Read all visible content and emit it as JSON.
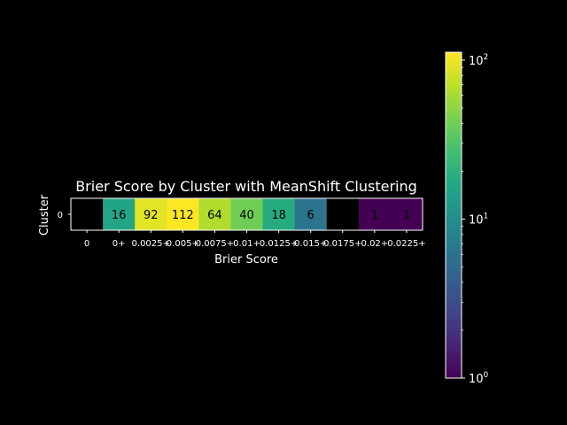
{
  "chart_data": {
    "type": "heatmap",
    "title": "Brier Score by Cluster with MeanShift Clustering",
    "xlabel": "Brier Score",
    "ylabel": "Cluster",
    "x_categories": [
      "0",
      "0+",
      "0.0025+",
      "0.005+",
      "0.0075+",
      "0.01+",
      "0.0125+",
      "0.015+",
      "0.0175+",
      "0.02+",
      "0.0225+"
    ],
    "y_categories": [
      "0"
    ],
    "values": [
      [
        null,
        16,
        92,
        112,
        64,
        40,
        18,
        6,
        null,
        1,
        1
      ]
    ],
    "cell_labels": [
      [
        "",
        "16",
        "92",
        "112",
        "64",
        "40",
        "18",
        "6",
        "",
        "1",
        "1"
      ]
    ],
    "colorscale": "viridis",
    "color_scale_type": "log",
    "color_range": [
      1,
      112
    ],
    "colorbar": {
      "ticks": [
        {
          "base": "10",
          "exponent": "0"
        },
        {
          "base": "10",
          "exponent": "1"
        },
        {
          "base": "10",
          "exponent": "2"
        }
      ]
    },
    "background": "#000000",
    "empty_cell_color": "#000000"
  }
}
